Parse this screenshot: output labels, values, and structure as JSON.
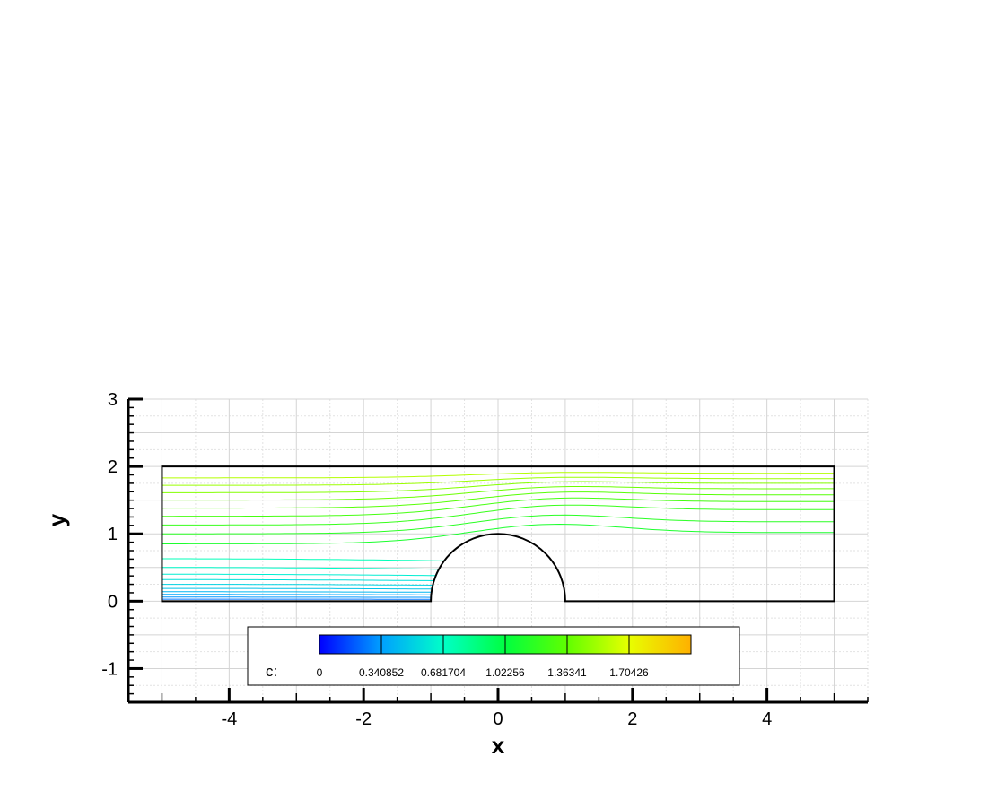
{
  "chart_data": {
    "type": "contour",
    "title": "",
    "xlabel": "x",
    "ylabel": "y",
    "xlim": [
      -5.5,
      5.5
    ],
    "ylim": [
      -1.5,
      3.0
    ],
    "x_ticks": [
      -4,
      -2,
      0,
      2,
      4
    ],
    "y_ticks": [
      -1,
      0,
      1,
      2,
      3
    ],
    "x_tick_labels": [
      "-4",
      "-2",
      "0",
      "2",
      "4"
    ],
    "y_tick_labels": [
      "-1",
      "0",
      "1",
      "2",
      "3"
    ],
    "grid": true,
    "domain": {
      "rect": {
        "xmin": -5,
        "xmax": 5,
        "ymin": 0,
        "ymax": 2
      },
      "semicircle_bump": {
        "center_x": 0,
        "center_y": 0,
        "radius": 1
      }
    },
    "contour_variable": "c",
    "colorbar": {
      "prefix": "c:",
      "levels": [
        0,
        0.340852,
        0.681704,
        1.02256,
        1.36341,
        1.70426
      ],
      "labels": [
        "0",
        "0.340852",
        "0.681704",
        "1.02256",
        "1.36341",
        "1.70426"
      ],
      "colors": [
        "#0000ff",
        "#00a0ff",
        "#00ffc8",
        "#00ff40",
        "#60ff00",
        "#e8ff00",
        "#ffb000",
        "#ff2000"
      ],
      "placement": "bottom-center"
    },
    "contour_lines": [
      {
        "level": 0.08,
        "y_in": 0.03,
        "y_out": null
      },
      {
        "level": 0.15,
        "y_in": 0.06,
        "y_out": null
      },
      {
        "level": 0.2,
        "y_in": 0.1,
        "y_out": null
      },
      {
        "level": 0.25,
        "y_in": 0.14,
        "y_out": null
      },
      {
        "level": 0.3,
        "y_in": 0.19,
        "y_out": null
      },
      {
        "level": 0.35,
        "y_in": 0.25,
        "y_out": null
      },
      {
        "level": 0.4,
        "y_in": 0.32,
        "y_out": null
      },
      {
        "level": 0.45,
        "y_in": 0.4,
        "y_out": null
      },
      {
        "level": 0.5,
        "y_in": 0.5,
        "y_out": null
      },
      {
        "level": 0.55,
        "y_in": 0.63,
        "y_out": null
      },
      {
        "level": 0.95,
        "y_in": 0.85,
        "y_out": 1.02
      },
      {
        "level": 1.0,
        "y_in": 1.0,
        "y_out": 1.18
      },
      {
        "level": 1.05,
        "y_in": 1.13,
        "y_out": 1.36
      },
      {
        "level": 1.1,
        "y_in": 1.26,
        "y_out": 1.48
      },
      {
        "level": 1.16,
        "y_in": 1.38,
        "y_out": 1.58
      },
      {
        "level": 1.22,
        "y_in": 1.5,
        "y_out": 1.67
      },
      {
        "level": 1.28,
        "y_in": 1.61,
        "y_out": 1.75
      },
      {
        "level": 1.34,
        "y_in": 1.72,
        "y_out": 1.82
      },
      {
        "level": 1.4,
        "y_in": 1.83,
        "y_out": 1.9
      }
    ]
  }
}
